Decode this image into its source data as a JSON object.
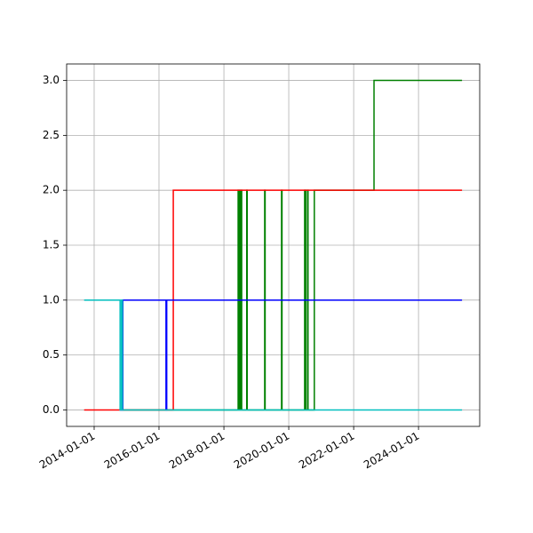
{
  "chart_data": {
    "type": "line",
    "drawstyle": "steps-post",
    "grid": true,
    "xlim": [
      "2013-02-25",
      "2025-11-20"
    ],
    "xticks": [
      "2014-01-01",
      "2016-01-01",
      "2018-01-01",
      "2020-01-01",
      "2022-01-01",
      "2024-01-01"
    ],
    "ylim": [
      -0.15,
      3.15
    ],
    "yticks": [
      {
        "value": 0,
        "label": "0.0"
      },
      {
        "value": 0.5,
        "label": "0.5"
      },
      {
        "value": 1,
        "label": "1.0"
      },
      {
        "value": 1.5,
        "label": "1.5"
      },
      {
        "value": 2,
        "label": "2.0"
      },
      {
        "value": 2.5,
        "label": "2.5"
      },
      {
        "value": 3,
        "label": "3.0"
      }
    ],
    "series": [
      {
        "color": "#008000",
        "x": [
          "2014-11-20",
          "2018-06-10",
          "2018-06-20",
          "2018-07-05",
          "2018-07-20",
          "2018-09-15",
          "2018-09-20",
          "2019-04-05",
          "2019-04-10",
          "2019-10-12",
          "2019-10-17",
          "2020-06-28",
          "2020-07-10",
          "2020-07-31",
          "2020-08-05",
          "2020-10-15",
          "2022-08-18",
          "2025-05-05"
        ],
        "values": [
          0,
          2,
          0,
          2,
          0,
          2,
          0,
          2,
          0,
          2,
          0,
          2,
          0,
          2,
          0,
          2,
          3,
          3
        ]
      },
      {
        "color": "#ff0000",
        "x": [
          "2013-09-10",
          "2016-06-10",
          "2025-05-05"
        ],
        "values": [
          0,
          2,
          2
        ]
      },
      {
        "color": "#0000ff",
        "x": [
          "2014-10-20",
          "2014-11-20",
          "2016-03-20",
          "2016-03-28",
          "2025-05-05"
        ],
        "values": [
          0,
          1,
          0,
          1,
          1
        ]
      },
      {
        "color": "#00bfbf",
        "x": [
          "2013-09-10",
          "2014-10-20",
          "2014-11-05",
          "2014-11-15",
          "2025-05-05"
        ],
        "values": [
          1,
          0,
          1,
          0,
          0
        ]
      }
    ]
  }
}
